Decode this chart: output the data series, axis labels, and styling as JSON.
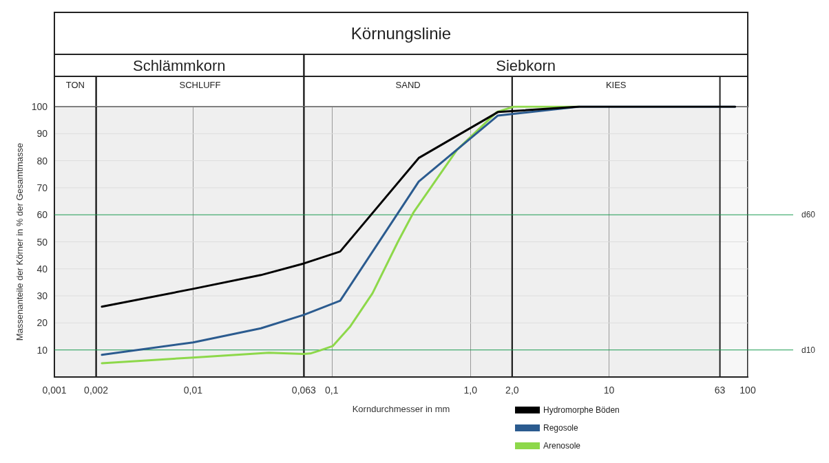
{
  "chart_data": {
    "type": "line",
    "title": "Körnungslinie",
    "xlabel": "Korndurchmesser in mm",
    "ylabel": "Massenanteile der Körner in % der Gesamtmasse",
    "log": "x",
    "xlim": [
      0.001,
      100
    ],
    "ylim": [
      0,
      100
    ],
    "xticks": [
      {
        "value": 0.001,
        "label": "0,001"
      },
      {
        "value": 0.002,
        "label": "0,002"
      },
      {
        "value": 0.01,
        "label": "0,01"
      },
      {
        "value": 0.063,
        "label": "0,063"
      },
      {
        "value": 0.1,
        "label": "0,1"
      },
      {
        "value": 1,
        "label": "1,0"
      },
      {
        "value": 2,
        "label": "2,0"
      },
      10,
      63,
      100
    ],
    "yticks": [
      10,
      20,
      30,
      40,
      50,
      60,
      70,
      80,
      90,
      100
    ],
    "grid": true,
    "legend": "bottom",
    "marker": "none",
    "line_style": "solid",
    "series": [
      {
        "name": "Hydromorphe Böden",
        "color": "#000000",
        "x": [
          0.0022,
          0.01,
          0.0308,
          0.063,
          0.115,
          0.424,
          1.58,
          6.1,
          81
        ],
        "values": [
          26,
          32.6,
          37.7,
          42,
          46.4,
          81,
          98,
          100,
          100
        ]
      },
      {
        "name": "Regosole",
        "color": "#2b5b8f",
        "x": [
          0.0022,
          0.01,
          0.0308,
          0.063,
          0.115,
          0.424,
          1.58,
          6.1,
          81
        ],
        "values": [
          8.2,
          12.8,
          18,
          23,
          28.2,
          72.3,
          96.7,
          100,
          100
        ]
      },
      {
        "name": "Arenosole",
        "color": "#8dd84a",
        "x": [
          0.0022,
          0.01,
          0.0352,
          0.0625,
          0.07,
          0.081,
          0.102,
          0.135,
          0.197,
          0.3,
          0.39,
          0.8,
          1.55,
          2.06,
          6.1
        ],
        "values": [
          5.1,
          7.2,
          9,
          8.5,
          8.7,
          9.7,
          11.5,
          18.5,
          31,
          50,
          61,
          84,
          98,
          100,
          100
        ]
      }
    ],
    "ref_lines": [
      {
        "axis": "y",
        "value": 60,
        "label": "d60",
        "color": "#1a9a50"
      },
      {
        "axis": "y",
        "value": 10,
        "label": "d10",
        "color": "#1a9a50"
      }
    ],
    "bands": [
      {
        "axis": "x",
        "from": 0.001,
        "to": 0.063,
        "label": "Schlämmkorn"
      },
      {
        "axis": "x",
        "from": 0.063,
        "to": 100,
        "label": "Siebkorn"
      },
      {
        "axis": "x",
        "from": 0.001,
        "to": 0.002,
        "label": "TON"
      },
      {
        "axis": "x",
        "from": 0.002,
        "to": 0.063,
        "label": "SCHLUFF"
      },
      {
        "axis": "x",
        "from": 0.063,
        "to": 2,
        "label": "SAND"
      },
      {
        "axis": "x",
        "from": 2,
        "to": 63,
        "label": "KIES"
      }
    ]
  }
}
